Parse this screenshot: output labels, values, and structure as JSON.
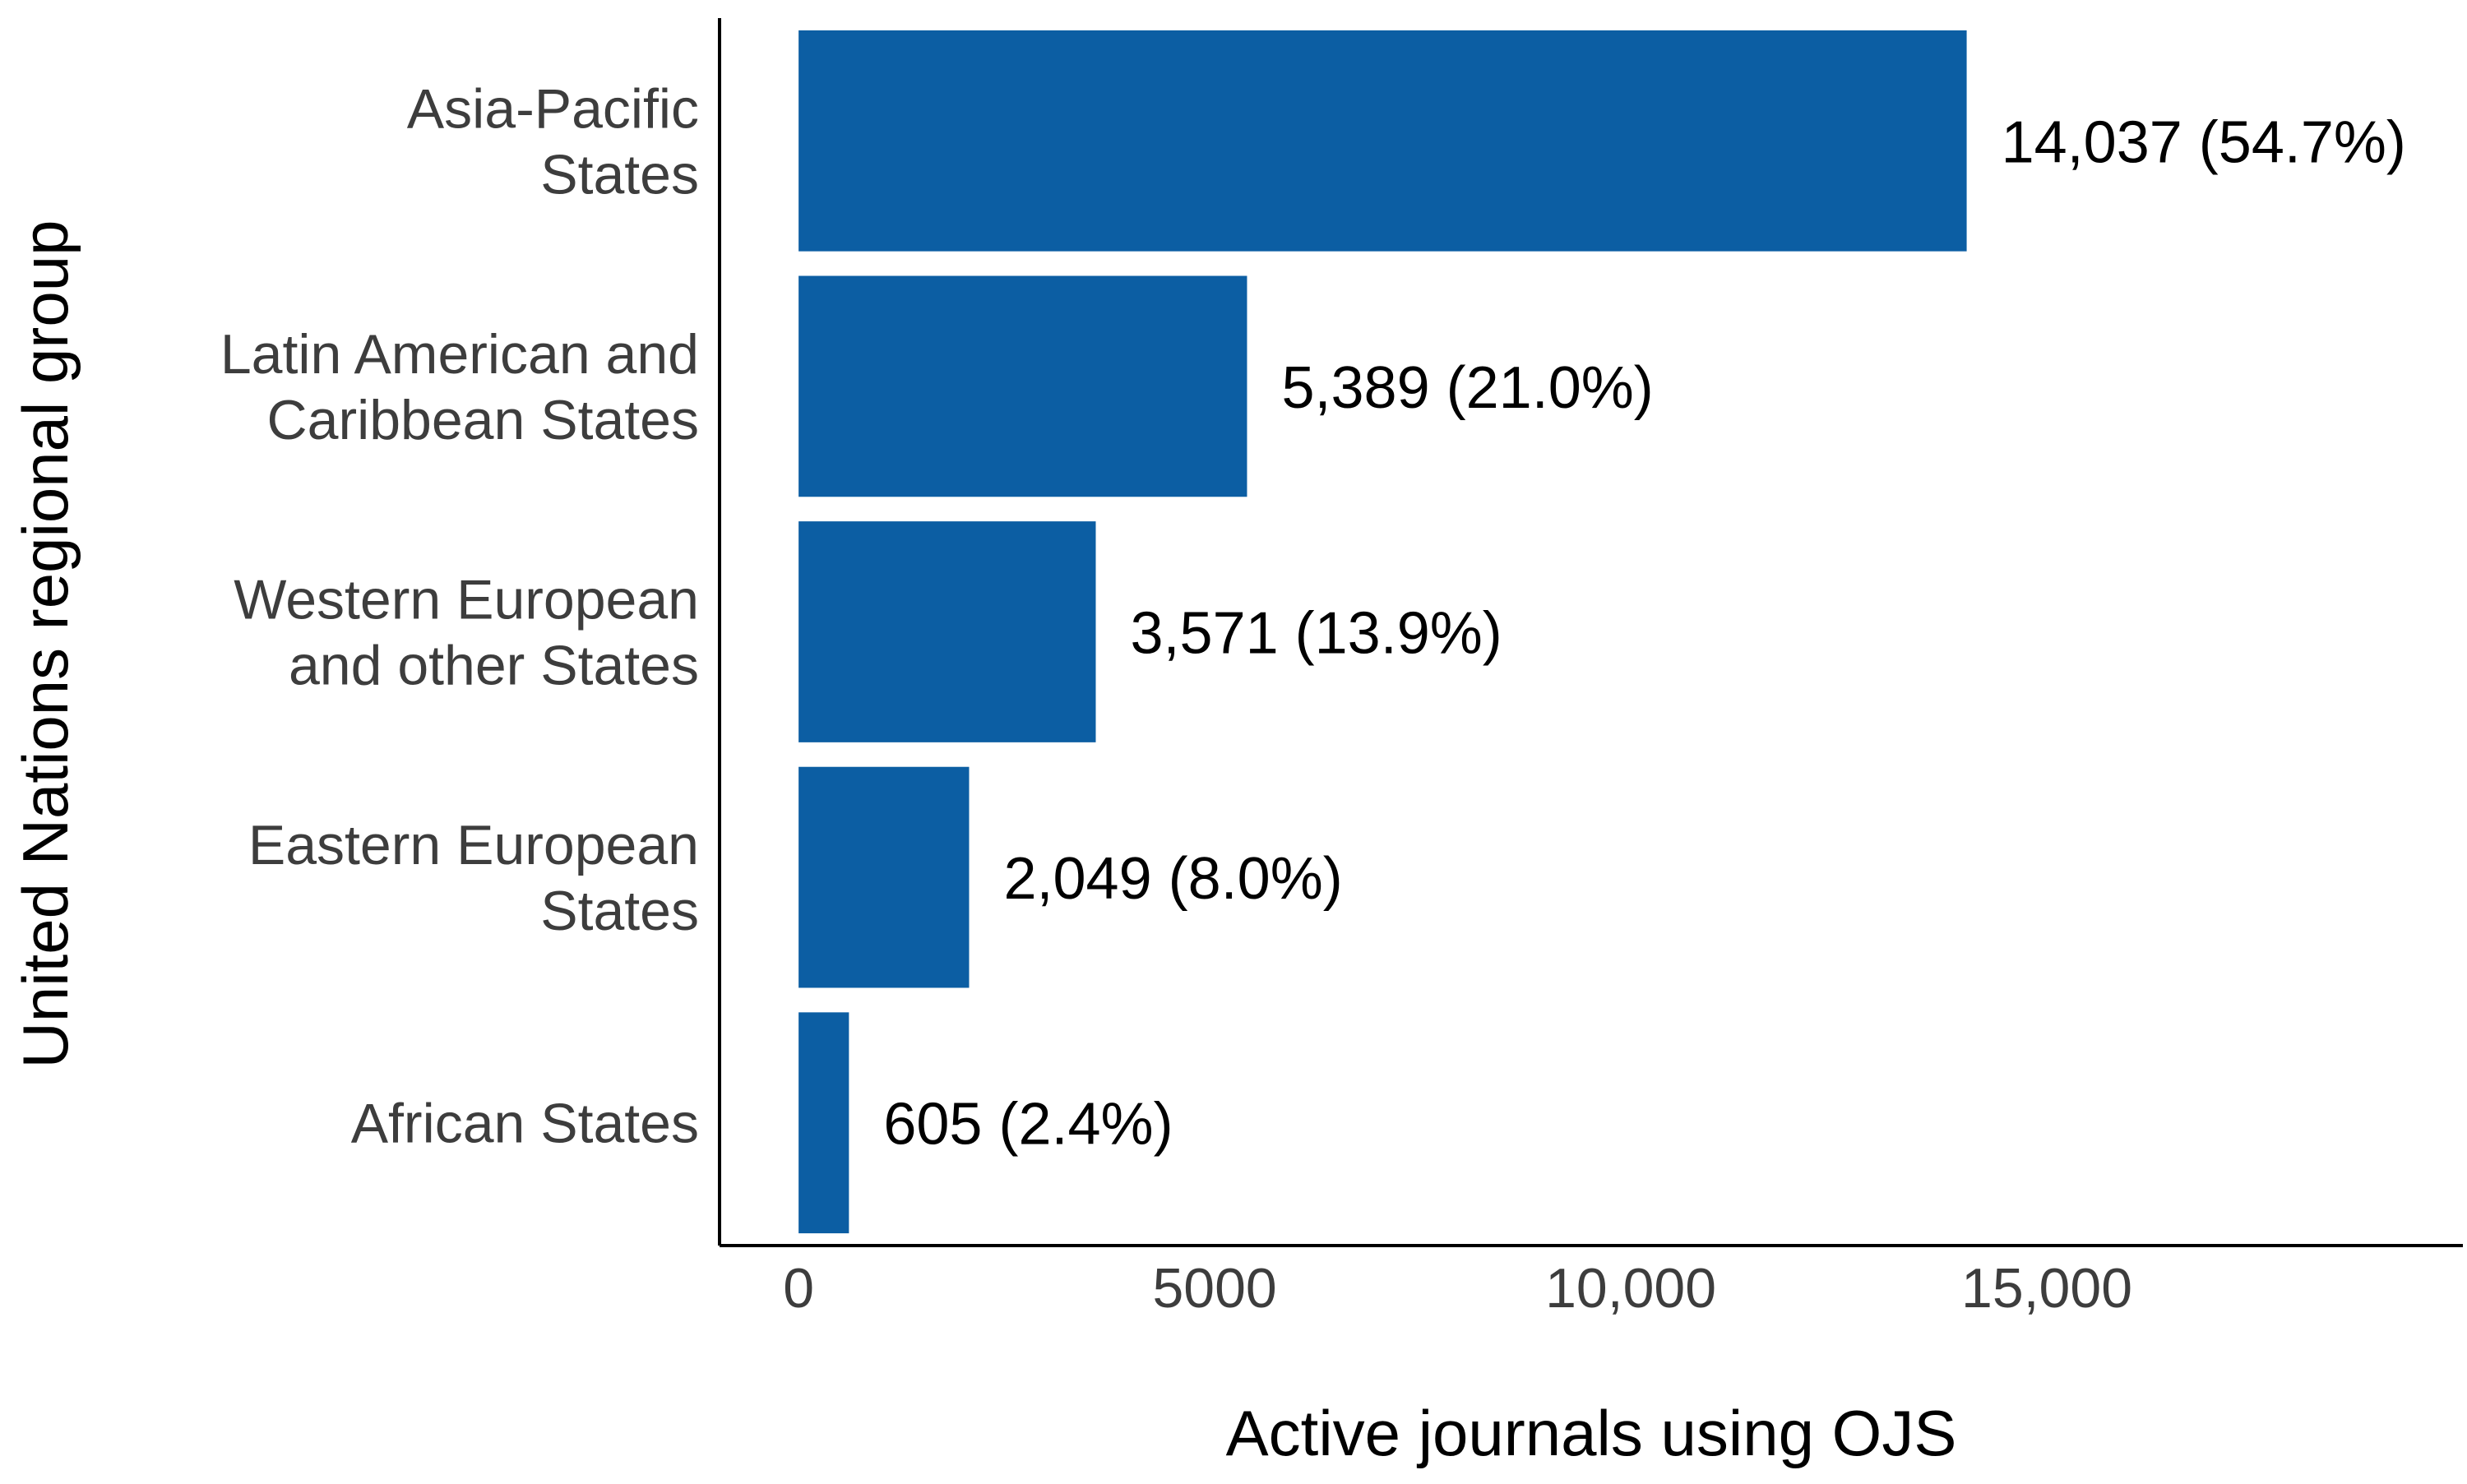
{
  "chart_data": {
    "type": "bar",
    "orientation": "horizontal",
    "categories": [
      [
        "Asia-Pacific",
        "States"
      ],
      [
        "Latin American and",
        "Caribbean States"
      ],
      [
        "Western European",
        "and other States"
      ],
      [
        "Eastern European",
        "States"
      ],
      [
        "African States"
      ]
    ],
    "values": [
      14037,
      5389,
      3571,
      2049,
      605
    ],
    "data_labels": [
      "14,037 (54.7%)",
      "5,389 (21.0%)",
      "3,571 (13.9%)",
      "2,049 (8.0%)",
      "605 (2.4%)"
    ],
    "xlabel": "Active journals using OJS",
    "ylabel": "United Nations regional group",
    "xlim": [
      -950,
      20000
    ],
    "xticks": [
      0,
      5000,
      10000,
      15000
    ],
    "xtick_labels": [
      "0",
      "5000",
      "10,000",
      "15,000"
    ],
    "grid": false,
    "legend": "none",
    "colors": {
      "bar": "#0c5ea3",
      "axis": "#000000",
      "tick_text": "#3d3d3d",
      "label_text": "#000000"
    }
  }
}
